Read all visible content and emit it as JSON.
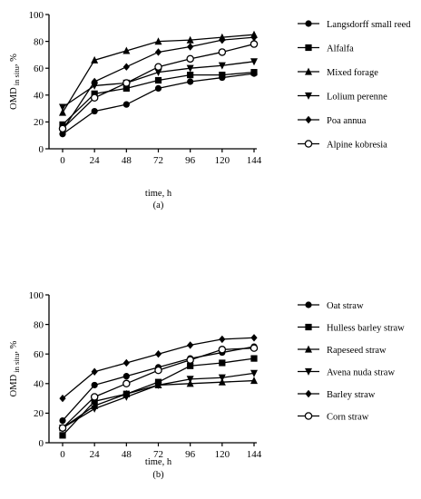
{
  "chart_data": [
    {
      "type": "line",
      "panel_label": "(a)",
      "xlabel": "time, h",
      "ylabel": "OMD",
      "ylabel_sub": "in situ",
      "ylabel_unit": ", %",
      "x": [
        0,
        24,
        48,
        72,
        96,
        120,
        144
      ],
      "ylim": [
        0,
        100
      ],
      "yticks": [
        0,
        20,
        40,
        60,
        80,
        100
      ],
      "legend_position": "right",
      "series": [
        {
          "name": "Langsdorff small reed",
          "marker": "circle",
          "values": [
            11,
            28,
            33,
            45,
            50,
            53,
            56
          ]
        },
        {
          "name": "Alfalfa",
          "marker": "square",
          "values": [
            18,
            41,
            45,
            51,
            55,
            55,
            57
          ]
        },
        {
          "name": "Mixed forage",
          "marker": "triangle-up",
          "values": [
            27,
            66,
            73,
            80,
            81,
            83,
            85
          ]
        },
        {
          "name": "Lolium perenne",
          "marker": "triangle-down",
          "values": [
            31,
            47,
            49,
            57,
            60,
            62,
            65
          ]
        },
        {
          "name": "Poa annua",
          "marker": "diamond",
          "values": [
            14,
            50,
            61,
            72,
            76,
            81,
            83
          ]
        },
        {
          "name": "Alpine kobresia",
          "marker": "open-circle",
          "values": [
            15,
            38,
            49,
            61,
            67,
            72,
            78
          ]
        }
      ]
    },
    {
      "type": "line",
      "panel_label": "(b)",
      "xlabel": "time, h",
      "ylabel": "OMD",
      "ylabel_sub": "in situ",
      "ylabel_unit": ", %",
      "x": [
        0,
        24,
        48,
        72,
        96,
        120,
        144
      ],
      "ylim": [
        0,
        100
      ],
      "yticks": [
        0,
        20,
        40,
        60,
        80,
        100
      ],
      "legend_position": "right",
      "series": [
        {
          "name": "Oat straw",
          "marker": "circle",
          "values": [
            15,
            39,
            45,
            51,
            57,
            61,
            65
          ]
        },
        {
          "name": "Hulless barley straw",
          "marker": "square",
          "values": [
            5,
            28,
            33,
            41,
            52,
            54,
            57
          ]
        },
        {
          "name": "Rapeseed straw",
          "marker": "triangle-up",
          "values": [
            10,
            25,
            33,
            39,
            40,
            41,
            42
          ]
        },
        {
          "name": "Avena nuda straw",
          "marker": "triangle-down",
          "values": [
            10,
            23,
            31,
            39,
            43,
            44,
            47
          ]
        },
        {
          "name": "Barley straw",
          "marker": "diamond",
          "values": [
            30,
            48,
            54,
            60,
            66,
            70,
            71
          ]
        },
        {
          "name": "Corn straw",
          "marker": "open-circle",
          "values": [
            10,
            31,
            40,
            49,
            56,
            63,
            64
          ]
        }
      ]
    }
  ]
}
